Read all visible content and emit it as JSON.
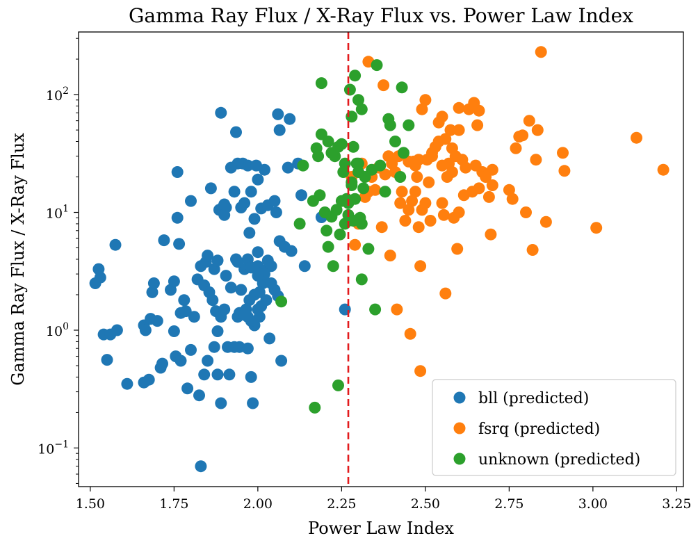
{
  "chart_data": {
    "type": "scatter",
    "title": "Gamma Ray Flux / X-Ray Flux vs. Power Law Index",
    "xlabel": "Power Law Index",
    "ylabel": "Gamma Ray Flux / X-Ray Flux",
    "xlim": [
      1.465,
      3.27
    ],
    "ylim": [
      0.047,
      340
    ],
    "yscale": "log",
    "xticks": [
      1.5,
      1.75,
      2.0,
      2.25,
      2.5,
      2.75,
      3.0,
      3.25
    ],
    "xtick_labels": [
      "1.50",
      "1.75",
      "2.00",
      "2.25",
      "2.50",
      "2.75",
      "3.00",
      "3.25"
    ],
    "yticks": [
      0.1,
      1,
      10,
      100
    ],
    "ytick_labels": [
      {
        "base": "10",
        "exp": "−1"
      },
      {
        "base": "10",
        "exp": "0"
      },
      {
        "base": "10",
        "exp": "1"
      },
      {
        "base": "10",
        "exp": "2"
      }
    ],
    "vline": {
      "x": 2.27,
      "color": "#e31a1c",
      "style": "dashed"
    },
    "legend": {
      "position": "lower-right"
    },
    "grid": false,
    "series": [
      {
        "name": "bll (predicted)",
        "color": "#1f77b4",
        "points": [
          [
            1.515,
            2.5
          ],
          [
            1.525,
            3.3
          ],
          [
            1.53,
            2.8
          ],
          [
            1.54,
            0.92
          ],
          [
            1.55,
            0.56
          ],
          [
            1.56,
            0.92
          ],
          [
            1.575,
            5.3
          ],
          [
            1.58,
            1.0
          ],
          [
            1.61,
            0.35
          ],
          [
            1.66,
            1.1
          ],
          [
            1.66,
            0.36
          ],
          [
            1.665,
            1.0
          ],
          [
            1.675,
            0.38
          ],
          [
            1.68,
            1.25
          ],
          [
            1.685,
            2.1
          ],
          [
            1.69,
            2.5
          ],
          [
            1.7,
            1.2
          ],
          [
            1.71,
            0.48
          ],
          [
            1.715,
            0.52
          ],
          [
            1.72,
            5.8
          ],
          [
            1.74,
            2.2
          ],
          [
            1.75,
            2.6
          ],
          [
            1.755,
            0.6
          ],
          [
            1.76,
            22
          ],
          [
            1.76,
            9
          ],
          [
            1.765,
            5.4
          ],
          [
            1.77,
            0.55
          ],
          [
            1.77,
            1.4
          ],
          [
            1.78,
            1.8
          ],
          [
            1.785,
            1.45
          ],
          [
            1.79,
            0.32
          ],
          [
            1.8,
            0.68
          ],
          [
            1.8,
            12.5
          ],
          [
            1.81,
            1.3
          ],
          [
            1.82,
            2.7
          ],
          [
            1.825,
            0.28
          ],
          [
            1.83,
            3.5
          ],
          [
            1.84,
            2.4
          ],
          [
            1.84,
            0.42
          ],
          [
            1.845,
            3.8
          ],
          [
            1.85,
            4.3
          ],
          [
            1.85,
            0.55
          ],
          [
            1.855,
            2.1
          ],
          [
            1.86,
            16
          ],
          [
            1.865,
            1.8
          ],
          [
            1.87,
            3.3
          ],
          [
            1.87,
            0.72
          ],
          [
            1.875,
            1.45
          ],
          [
            1.88,
            0.42
          ],
          [
            1.88,
            3.9
          ],
          [
            1.885,
            10.5
          ],
          [
            1.89,
            0.24
          ],
          [
            1.89,
            1.3
          ],
          [
            1.89,
            70
          ],
          [
            1.895,
            11
          ],
          [
            1.9,
            9.5
          ],
          [
            1.9,
            1.5
          ],
          [
            1.905,
            11
          ],
          [
            1.905,
            2.9
          ],
          [
            1.91,
            0.72
          ],
          [
            1.915,
            0.42
          ],
          [
            1.92,
            2.3
          ],
          [
            1.93,
            0.72
          ],
          [
            1.93,
            15
          ],
          [
            1.935,
            48
          ],
          [
            1.935,
            4
          ],
          [
            1.94,
            1.3
          ],
          [
            1.945,
            1.4
          ],
          [
            1.945,
            0.72
          ],
          [
            1.95,
            2.2
          ],
          [
            1.95,
            11
          ],
          [
            1.955,
            26
          ],
          [
            1.96,
            3.3
          ],
          [
            1.96,
            12
          ],
          [
            1.965,
            1.5
          ],
          [
            1.97,
            1.3
          ],
          [
            1.97,
            25
          ],
          [
            1.97,
            0.7
          ],
          [
            1.975,
            6.7
          ],
          [
            1.975,
            1.8
          ],
          [
            1.98,
            15
          ],
          [
            1.98,
            0.4
          ],
          [
            1.985,
            0.24
          ],
          [
            1.99,
            8.8
          ],
          [
            1.99,
            2
          ],
          [
            1.99,
            1.1
          ],
          [
            1.995,
            25
          ],
          [
            2.0,
            3.5
          ],
          [
            2.0,
            19
          ],
          [
            2.0,
            4.6
          ],
          [
            2.005,
            1.3
          ],
          [
            2.01,
            10.8
          ],
          [
            2.01,
            1.6
          ],
          [
            2.015,
            2.5
          ],
          [
            2.02,
            3.2
          ],
          [
            2.02,
            23
          ],
          [
            2.025,
            1.8
          ],
          [
            2.03,
            11.5
          ],
          [
            2.03,
            3.9
          ],
          [
            2.035,
            0.85
          ],
          [
            2.04,
            3.5
          ],
          [
            2.05,
            12.5
          ],
          [
            2.055,
            10
          ],
          [
            2.06,
            68
          ],
          [
            2.06,
            1.95
          ],
          [
            2.065,
            5.7
          ],
          [
            2.065,
            50
          ],
          [
            2.07,
            0.55
          ],
          [
            2.08,
            5.1
          ],
          [
            2.09,
            24
          ],
          [
            2.095,
            62
          ],
          [
            2.1,
            4.7
          ],
          [
            2.12,
            26
          ],
          [
            2.13,
            14
          ],
          [
            2.14,
            3.5
          ],
          [
            2.19,
            9.1
          ],
          [
            2.26,
            1.5
          ],
          [
            1.75,
            0.98
          ],
          [
            1.88,
            0.98
          ],
          [
            1.98,
            1.2
          ],
          [
            2.0,
            1.5
          ],
          [
            2.02,
            3.0
          ],
          [
            2.05,
            2.2
          ],
          [
            1.94,
            3.8
          ],
          [
            1.97,
            4.0
          ],
          [
            1.96,
            1.35
          ],
          [
            2.005,
            2.1
          ],
          [
            1.83,
            0.07
          ],
          [
            1.94,
            26
          ],
          [
            1.92,
            24
          ],
          [
            2.04,
            2.5
          ],
          [
            2.0,
            2.9
          ],
          [
            1.98,
            3.4
          ],
          [
            1.9,
            11.7
          ]
        ]
      },
      {
        "name": "fsrq (predicted)",
        "color": "#ff7f0e",
        "points": [
          [
            2.27,
            8.5
          ],
          [
            2.28,
            20
          ],
          [
            2.29,
            5.3
          ],
          [
            2.3,
            8
          ],
          [
            2.31,
            26
          ],
          [
            2.32,
            13.5
          ],
          [
            2.33,
            190
          ],
          [
            2.33,
            15
          ],
          [
            2.34,
            20
          ],
          [
            2.35,
            15.5
          ],
          [
            2.36,
            24
          ],
          [
            2.37,
            7.5
          ],
          [
            2.375,
            120
          ],
          [
            2.38,
            21
          ],
          [
            2.39,
            30
          ],
          [
            2.395,
            4.3
          ],
          [
            2.4,
            26
          ],
          [
            2.41,
            22
          ],
          [
            2.415,
            1.5
          ],
          [
            2.42,
            30
          ],
          [
            2.425,
            12
          ],
          [
            2.43,
            15
          ],
          [
            2.44,
            8.5
          ],
          [
            2.45,
            10.5
          ],
          [
            2.455,
            0.93
          ],
          [
            2.46,
            12.5
          ],
          [
            2.465,
            27
          ],
          [
            2.47,
            25
          ],
          [
            2.475,
            20
          ],
          [
            2.48,
            7.5
          ],
          [
            2.485,
            3.5
          ],
          [
            2.485,
            0.45
          ],
          [
            2.49,
            75
          ],
          [
            2.49,
            10.5
          ],
          [
            2.5,
            90
          ],
          [
            2.5,
            12
          ],
          [
            2.505,
            28
          ],
          [
            2.51,
            18
          ],
          [
            2.515,
            8.5
          ],
          [
            2.52,
            32
          ],
          [
            2.53,
            36
          ],
          [
            2.54,
            58
          ],
          [
            2.54,
            40
          ],
          [
            2.55,
            12
          ],
          [
            2.55,
            65
          ],
          [
            2.555,
            9.5
          ],
          [
            2.56,
            2.05
          ],
          [
            2.56,
            42
          ],
          [
            2.565,
            20
          ],
          [
            2.57,
            26
          ],
          [
            2.575,
            50
          ],
          [
            2.58,
            35
          ],
          [
            2.585,
            9
          ],
          [
            2.59,
            30
          ],
          [
            2.595,
            4.9
          ],
          [
            2.6,
            77
          ],
          [
            2.6,
            50
          ],
          [
            2.61,
            28
          ],
          [
            2.615,
            14
          ],
          [
            2.63,
            75
          ],
          [
            2.64,
            15
          ],
          [
            2.645,
            85
          ],
          [
            2.65,
            25
          ],
          [
            2.655,
            55
          ],
          [
            2.66,
            16
          ],
          [
            2.67,
            22
          ],
          [
            2.68,
            20
          ],
          [
            2.69,
            13.5
          ],
          [
            2.695,
            6.5
          ],
          [
            2.7,
            23
          ],
          [
            2.7,
            17
          ],
          [
            2.75,
            15.5
          ],
          [
            2.76,
            13
          ],
          [
            2.77,
            35
          ],
          [
            2.78,
            44
          ],
          [
            2.79,
            45
          ],
          [
            2.8,
            10
          ],
          [
            2.81,
            60
          ],
          [
            2.82,
            4.8
          ],
          [
            2.83,
            28
          ],
          [
            2.835,
            50
          ],
          [
            2.845,
            230
          ],
          [
            2.86,
            8.3
          ],
          [
            2.91,
            32
          ],
          [
            2.915,
            22.5
          ],
          [
            3.01,
            7.4
          ],
          [
            3.13,
            43
          ],
          [
            3.21,
            23
          ],
          [
            2.45,
            27
          ],
          [
            2.52,
            30
          ],
          [
            2.58,
            22
          ],
          [
            2.62,
            24
          ],
          [
            2.47,
            15
          ],
          [
            2.55,
            25
          ],
          [
            2.6,
            10
          ],
          [
            2.66,
            73
          ],
          [
            2.48,
            28
          ]
        ]
      },
      {
        "name": "unknown (predicted)",
        "color": "#2ca02c",
        "points": [
          [
            2.07,
            1.75
          ],
          [
            2.125,
            8
          ],
          [
            2.135,
            25
          ],
          [
            2.165,
            12.5
          ],
          [
            2.17,
            0.22
          ],
          [
            2.175,
            35
          ],
          [
            2.18,
            30
          ],
          [
            2.185,
            14
          ],
          [
            2.19,
            125
          ],
          [
            2.19,
            46
          ],
          [
            2.2,
            10
          ],
          [
            2.205,
            7
          ],
          [
            2.21,
            40
          ],
          [
            2.21,
            5.1
          ],
          [
            2.22,
            32
          ],
          [
            2.225,
            3.5
          ],
          [
            2.23,
            30
          ],
          [
            2.235,
            10.5
          ],
          [
            2.24,
            0.34
          ],
          [
            2.245,
            6.5
          ],
          [
            2.25,
            38
          ],
          [
            2.25,
            12.5
          ],
          [
            2.255,
            22
          ],
          [
            2.26,
            8
          ],
          [
            2.265,
            13
          ],
          [
            2.27,
            9.5
          ],
          [
            2.275,
            110
          ],
          [
            2.28,
            18
          ],
          [
            2.28,
            65
          ],
          [
            2.285,
            8.5
          ],
          [
            2.29,
            145
          ],
          [
            2.295,
            26
          ],
          [
            2.3,
            26
          ],
          [
            2.3,
            90
          ],
          [
            2.305,
            9
          ],
          [
            2.31,
            75
          ],
          [
            2.31,
            2.7
          ],
          [
            2.315,
            16
          ],
          [
            2.32,
            20
          ],
          [
            2.33,
            4.9
          ],
          [
            2.34,
            23
          ],
          [
            2.35,
            1.5
          ],
          [
            2.355,
            178
          ],
          [
            2.365,
            25
          ],
          [
            2.38,
            15
          ],
          [
            2.39,
            62
          ],
          [
            2.395,
            55
          ],
          [
            2.41,
            40
          ],
          [
            2.425,
            20
          ],
          [
            2.43,
            115
          ],
          [
            2.435,
            32
          ],
          [
            2.45,
            55
          ],
          [
            2.24,
            36
          ],
          [
            2.27,
            12
          ],
          [
            2.285,
            36
          ],
          [
            2.3,
            22
          ],
          [
            2.22,
            9.2
          ],
          [
            2.26,
            26
          ],
          [
            2.29,
            13
          ],
          [
            2.28,
            17
          ],
          [
            2.31,
            8
          ]
        ]
      }
    ]
  }
}
